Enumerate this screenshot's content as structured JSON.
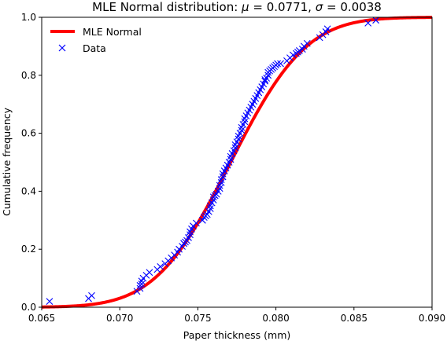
{
  "chart_data": {
    "type": "line",
    "title_main": "MLE Normal distribution: ",
    "title_mu_sym": "μ",
    "title_mu_val": " = 0.0771,  ",
    "title_sigma_sym": "σ",
    "title_sigma_val": " = 0.0038",
    "xlabel": "Paper thickness (mm)",
    "ylabel": "Cumulative frequency",
    "xlim": [
      0.065,
      0.09
    ],
    "ylim": [
      0.0,
      1.0
    ],
    "xticks": [
      0.065,
      0.07,
      0.075,
      0.08,
      0.085,
      0.09
    ],
    "xtick_labels": [
      "0.065",
      "0.070",
      "0.075",
      "0.080",
      "0.085",
      "0.090"
    ],
    "yticks": [
      0.0,
      0.2,
      0.4,
      0.6,
      0.8,
      1.0
    ],
    "ytick_labels": [
      "0.0",
      "0.2",
      "0.4",
      "0.6",
      "0.8",
      "1.0"
    ],
    "grid": false,
    "legend_placement": "top-left",
    "colors": {
      "fit": "#ff0000",
      "data": "#0000ff"
    },
    "series": [
      {
        "name": "MLE Normal",
        "kind": "normal-cdf",
        "mu": 0.0771,
        "sigma": 0.0038
      },
      {
        "name": "Data",
        "kind": "scatter",
        "marker": "x",
        "x": [
          0.0655,
          0.068,
          0.0682,
          0.0711,
          0.0713,
          0.0713,
          0.0714,
          0.0714,
          0.0715,
          0.0717,
          0.0719,
          0.0724,
          0.0726,
          0.0729,
          0.0731,
          0.0733,
          0.0735,
          0.0737,
          0.0738,
          0.074,
          0.0741,
          0.0742,
          0.0743,
          0.0744,
          0.0745,
          0.0745,
          0.0746,
          0.0747,
          0.0749,
          0.0753,
          0.0754,
          0.0755,
          0.0756,
          0.0757,
          0.0758,
          0.0758,
          0.0759,
          0.076,
          0.076,
          0.0761,
          0.0762,
          0.0763,
          0.0764,
          0.0764,
          0.0765,
          0.0765,
          0.0766,
          0.0766,
          0.0767,
          0.0768,
          0.0769,
          0.077,
          0.0771,
          0.0771,
          0.0772,
          0.0773,
          0.0774,
          0.0774,
          0.0775,
          0.0776,
          0.0776,
          0.0777,
          0.0778,
          0.0778,
          0.0779,
          0.078,
          0.078,
          0.0781,
          0.0782,
          0.0783,
          0.0784,
          0.0785,
          0.0786,
          0.0787,
          0.0788,
          0.0789,
          0.079,
          0.0791,
          0.0792,
          0.0793,
          0.0793,
          0.0794,
          0.0795,
          0.0795,
          0.0796,
          0.0797,
          0.0798,
          0.0799,
          0.08,
          0.0801,
          0.0803,
          0.0807,
          0.0809,
          0.0811,
          0.0813,
          0.0814,
          0.0815,
          0.0817,
          0.0818,
          0.082,
          0.0828,
          0.083,
          0.0832,
          0.0833,
          0.0859,
          0.0864
        ],
        "y": [
          0.02,
          0.03,
          0.04,
          0.055,
          0.065,
          0.075,
          0.08,
          0.09,
          0.1,
          0.11,
          0.12,
          0.13,
          0.14,
          0.15,
          0.16,
          0.17,
          0.18,
          0.19,
          0.2,
          0.21,
          0.22,
          0.225,
          0.23,
          0.24,
          0.25,
          0.26,
          0.27,
          0.28,
          0.29,
          0.3,
          0.31,
          0.315,
          0.32,
          0.33,
          0.34,
          0.35,
          0.36,
          0.37,
          0.38,
          0.385,
          0.39,
          0.4,
          0.41,
          0.42,
          0.43,
          0.44,
          0.45,
          0.46,
          0.47,
          0.48,
          0.49,
          0.5,
          0.51,
          0.52,
          0.53,
          0.54,
          0.55,
          0.56,
          0.57,
          0.58,
          0.59,
          0.6,
          0.61,
          0.62,
          0.63,
          0.64,
          0.65,
          0.66,
          0.67,
          0.68,
          0.69,
          0.7,
          0.71,
          0.72,
          0.73,
          0.74,
          0.75,
          0.76,
          0.77,
          0.78,
          0.785,
          0.79,
          0.8,
          0.81,
          0.815,
          0.82,
          0.825,
          0.83,
          0.835,
          0.84,
          0.84,
          0.85,
          0.86,
          0.87,
          0.875,
          0.88,
          0.885,
          0.89,
          0.9,
          0.91,
          0.93,
          0.94,
          0.95,
          0.96,
          0.98,
          0.99
        ]
      }
    ]
  }
}
